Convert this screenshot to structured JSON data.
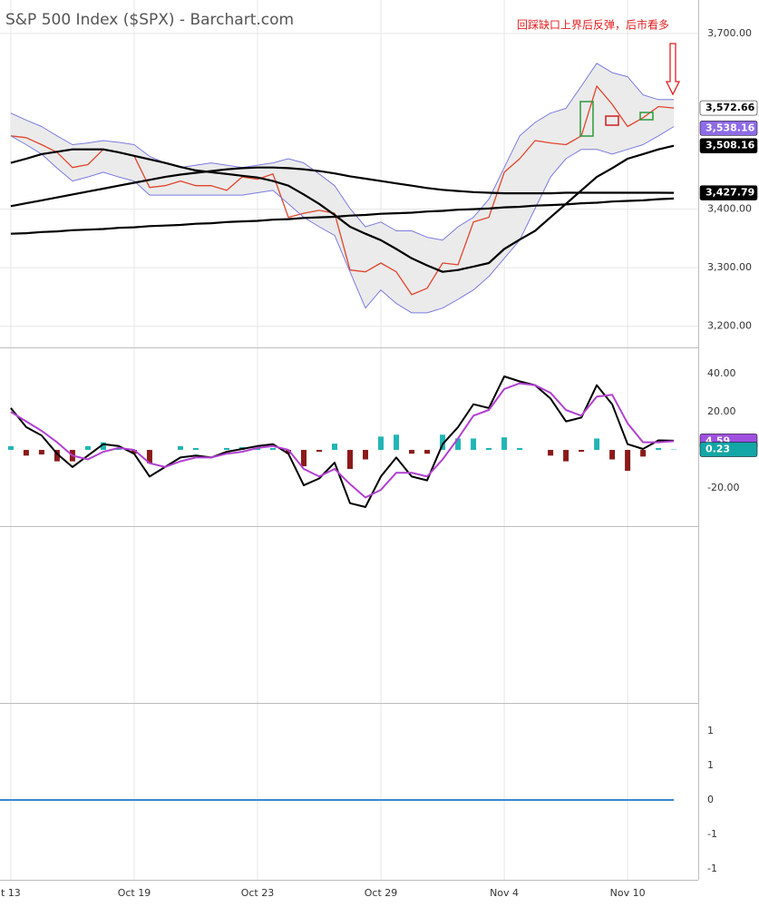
{
  "chart_data": [
    {
      "type": "line",
      "title": "S&P 500 Index ($SPX) - Barchart.com",
      "annotation": "回踩缺口上界后反弹，后市看多",
      "x": [
        0,
        0.5,
        1,
        1.5,
        2,
        2.5,
        3,
        3.5,
        4,
        4.5,
        5,
        5.5,
        6,
        6.5,
        7,
        7.5,
        8,
        8.5,
        9,
        9.5,
        10,
        10.5,
        11,
        11.5,
        12,
        12.5,
        13,
        13.5,
        14,
        14.5,
        15,
        15.5,
        16,
        16.5,
        17,
        17.5,
        18,
        18.5,
        19,
        19.5,
        20,
        20.5,
        21,
        21.5
      ],
      "xlim": [
        -0.35,
        22.29
      ],
      "ylim": [
        3164,
        3757
      ],
      "yticks": [
        {
          "value": 3700,
          "label": "3,700.00"
        },
        {
          "value": 3400,
          "label": "3,400.00"
        },
        {
          "value": 3300,
          "label": "3,300.00"
        },
        {
          "value": 3200,
          "label": "3,200.00"
        }
      ],
      "grid": true,
      "band": [
        1,
        2
      ],
      "band_color": "#ebebeb",
      "series": [
        {
          "color": "#e0452b",
          "width": 1.3,
          "values": [
            3525,
            3522,
            3510,
            3497,
            3471,
            3476,
            3502,
            3497,
            3491,
            3437,
            3440,
            3448,
            3440,
            3440,
            3432,
            3455,
            3451,
            3460,
            3386,
            3393,
            3398,
            3393,
            3296,
            3293,
            3308,
            3293,
            3254,
            3265,
            3308,
            3305,
            3378,
            3386,
            3463,
            3486,
            3517,
            3513,
            3510,
            3525,
            3610,
            3579,
            3541,
            3556,
            3575,
            3572.66
          ]
        },
        {
          "color": "#7b7be0",
          "width": 1,
          "values": [
            3564,
            3552,
            3541,
            3525,
            3510,
            3513,
            3517,
            3514,
            3510,
            3490,
            3479,
            3471,
            3475,
            3479,
            3475,
            3471,
            3475,
            3479,
            3486,
            3479,
            3460,
            3440,
            3401,
            3370,
            3378,
            3363,
            3363,
            3352,
            3347,
            3370,
            3386,
            3417,
            3471,
            3525,
            3548,
            3564,
            3572,
            3610,
            3649,
            3633,
            3626,
            3595,
            3587,
            3587
          ]
        },
        {
          "color": "#7b7be0",
          "width": 1,
          "values": [
            3525,
            3510,
            3494,
            3470,
            3448,
            3455,
            3463,
            3455,
            3448,
            3424,
            3424,
            3424,
            3424,
            3424,
            3424,
            3424,
            3428,
            3432,
            3409,
            3386,
            3370,
            3355,
            3293,
            3231,
            3262,
            3239,
            3223,
            3223,
            3231,
            3246,
            3262,
            3285,
            3316,
            3347,
            3401,
            3455,
            3486,
            3502,
            3502,
            3494,
            3502,
            3510,
            3525,
            3541
          ]
        },
        {
          "color": "#000000",
          "width": 2.2,
          "values": [
            3479,
            3486,
            3494,
            3498,
            3502,
            3502,
            3502,
            3497,
            3491,
            3485,
            3479,
            3472,
            3466,
            3463,
            3460,
            3457,
            3454,
            3448,
            3440,
            3425,
            3409,
            3390,
            3370,
            3358,
            3347,
            3332,
            3316,
            3304,
            3293,
            3296,
            3302,
            3308,
            3332,
            3348,
            3363,
            3386,
            3409,
            3432,
            3455,
            3470,
            3486,
            3494,
            3502,
            3508.16
          ]
        },
        {
          "color": "#000000",
          "width": 2.2,
          "values": [
            3405,
            3410,
            3415,
            3420,
            3425,
            3430,
            3435,
            3440,
            3445,
            3450,
            3455,
            3459,
            3462,
            3465,
            3468,
            3470,
            3471,
            3471,
            3470,
            3468,
            3465,
            3461,
            3456,
            3452,
            3448,
            3444,
            3440,
            3436,
            3433,
            3431,
            3429,
            3428,
            3427,
            3427,
            3427,
            3427,
            3428,
            3428,
            3428,
            3428,
            3428,
            3428,
            3428,
            3427.79
          ]
        },
        {
          "color": "#000000",
          "width": 2.2,
          "values": [
            3358,
            3359,
            3361,
            3362,
            3364,
            3365,
            3366,
            3368,
            3369,
            3371,
            3372,
            3373,
            3375,
            3376,
            3378,
            3379,
            3380,
            3382,
            3383,
            3385,
            3386,
            3387,
            3389,
            3390,
            3392,
            3393,
            3394,
            3396,
            3397,
            3399,
            3400,
            3401,
            3403,
            3404,
            3406,
            3407,
            3408,
            3410,
            3411,
            3413,
            3414,
            3415,
            3417,
            3418
          ]
        }
      ],
      "last_labels": [
        {
          "value": 3572.66,
          "label": "3,572.66",
          "color": "#ffffff",
          "text_color": "#000000"
        },
        {
          "value": 3538.16,
          "label": "3,538.16",
          "color": "#8e6be8",
          "text_color": "#ffffff"
        },
        {
          "value": 3508.16,
          "label": "3,508.16",
          "color": "#000000",
          "text_color": "#ffffff"
        },
        {
          "value": 3427.79,
          "label": "3,427.79",
          "color": "#000000",
          "text_color": "#ffffff"
        }
      ]
    },
    {
      "type": "combo",
      "x": [
        0,
        0.5,
        1,
        1.5,
        2,
        2.5,
        3,
        3.5,
        4,
        4.5,
        5,
        5.5,
        6,
        6.5,
        7,
        7.5,
        8,
        8.5,
        9,
        9.5,
        10,
        10.5,
        11,
        11.5,
        12,
        12.5,
        13,
        13.5,
        14,
        14.5,
        15,
        15.5,
        16,
        16.5,
        17,
        17.5,
        18,
        18.5,
        19,
        19.5,
        20,
        20.5,
        21,
        21.5
      ],
      "xlim": [
        -0.35,
        22.29
      ],
      "ylim": [
        -40,
        52.9
      ],
      "yticks": [
        {
          "value": 40,
          "label": "40.00"
        },
        {
          "value": 20,
          "label": "20.00"
        },
        {
          "value": -20,
          "label": "-20.00"
        }
      ],
      "grid": false,
      "series": [
        {
          "type": "bar",
          "color": "#22b5b5",
          "neg_color": "#8b1a1a",
          "values": [
            2,
            -3,
            -2.4,
            -6,
            -6,
            2,
            4,
            1,
            -2,
            -7,
            0,
            2,
            1,
            0,
            1,
            1.5,
            1,
            1,
            -2,
            -8.6,
            -1,
            3.3,
            -10,
            -5,
            7,
            8,
            -2,
            -2,
            8,
            6,
            6,
            1,
            6.6,
            1,
            0,
            -3,
            -6,
            -1,
            6,
            -5,
            -11,
            -3.5,
            1,
            0.23
          ]
        },
        {
          "type": "line",
          "color": "#000000",
          "width": 2,
          "values": [
            22,
            12,
            7.6,
            -2,
            -9,
            -3,
            3,
            2,
            -2,
            -14,
            -9,
            -4,
            -3,
            -4,
            -1,
            0.5,
            2,
            3,
            -2,
            -18.6,
            -15,
            -6.7,
            -28,
            -30,
            -14,
            -4,
            -14,
            -16,
            3,
            12,
            24,
            22,
            38.6,
            36,
            34,
            27,
            15,
            17,
            34,
            24,
            3,
            0.5,
            5,
            4.82
          ]
        },
        {
          "type": "line",
          "color": "#b040d0",
          "width": 2,
          "values": [
            20,
            15,
            10,
            4,
            -3,
            -5,
            -1,
            1,
            0,
            -7,
            -9,
            -6,
            -4,
            -4,
            -2,
            -1,
            1,
            2,
            0,
            -10,
            -14,
            -10,
            -18,
            -25,
            -21,
            -12,
            -12,
            -14,
            -5,
            6,
            18,
            21,
            32,
            35,
            34,
            30,
            21,
            18,
            28,
            29,
            14,
            4,
            4,
            4.59
          ]
        }
      ],
      "last_labels": [
        {
          "value": 4.59,
          "label": "4.59",
          "color": "#a050e0",
          "text_color": "#ffffff"
        },
        {
          "value": 0.23,
          "label": "0.23",
          "color": "#13a6a6",
          "text_color": "#ffffff"
        }
      ]
    },
    {
      "type": "line",
      "x": [
        -0.35,
        21.5
      ],
      "xlim": [
        -0.35,
        22.29
      ],
      "ylim": [
        -1.158,
        1.408
      ],
      "yticks": [
        1,
        {
          "value": 0.5,
          "label": "1"
        },
        0,
        {
          "value": -0.5,
          "label": "-1"
        },
        -1
      ],
      "xticks": [
        {
          "value": 0,
          "label": "t 13"
        },
        {
          "value": 4,
          "label": "Oct 19"
        },
        {
          "value": 8,
          "label": "Oct 23"
        },
        {
          "value": 12,
          "label": "Oct 29"
        },
        {
          "value": 16,
          "label": "Nov 4"
        },
        {
          "value": 20,
          "label": "Nov 10"
        }
      ],
      "grid": false,
      "series": [
        {
          "color": "#3a86d4",
          "width": 2,
          "values": [
            0,
            0
          ]
        }
      ]
    }
  ]
}
